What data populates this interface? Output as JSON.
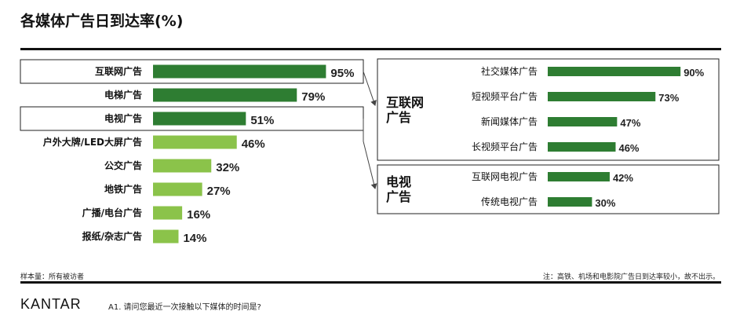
{
  "title": "各媒体广告日到达率(%)",
  "footer": {
    "sample": "样本量：所有被访者",
    "note": "注：高铁、机场和电影院广告日到达率较小，故不出示。",
    "question": "A1. 请问您最近一次接触以下媒体的时间是?",
    "logo": "KANTAR"
  },
  "colors": {
    "dark_green": "#2e7d32",
    "light_green": "#8bc34a"
  },
  "chart_data": [
    {
      "type": "bar",
      "orientation": "horizontal",
      "title": "",
      "categories": [
        "互联网广告",
        "电梯广告",
        "电视广告",
        "户外大牌/LED大屏广告",
        "公交广告",
        "地铁广告",
        "广播/电台广告",
        "报纸/杂志广告"
      ],
      "values": [
        95,
        79,
        51,
        46,
        32,
        27,
        16,
        14
      ],
      "value_labels": [
        "95%",
        "79%",
        "51%",
        "46%",
        "32%",
        "27%",
        "16%",
        "14%"
      ],
      "highlighted": [
        "互联网广告",
        "电视广告"
      ],
      "xlim": [
        0,
        100
      ]
    },
    {
      "type": "bar",
      "orientation": "horizontal",
      "groups": [
        {
          "name": "互联网广告",
          "categories": [
            "社交媒体广告",
            "短视频平台广告",
            "新闻媒体广告",
            "长视频平台广告"
          ],
          "values": [
            90,
            73,
            47,
            46
          ],
          "value_labels": [
            "90%",
            "73%",
            "47%",
            "46%"
          ]
        },
        {
          "name": "电视广告",
          "categories": [
            "互联网电视广告",
            "传统电视广告"
          ],
          "values": [
            42,
            30
          ],
          "value_labels": [
            "42%",
            "30%"
          ]
        }
      ],
      "group_labels": [
        [
          "互联网",
          "广告"
        ],
        [
          "电视",
          "广告"
        ]
      ],
      "xlim": [
        0,
        100
      ]
    }
  ]
}
